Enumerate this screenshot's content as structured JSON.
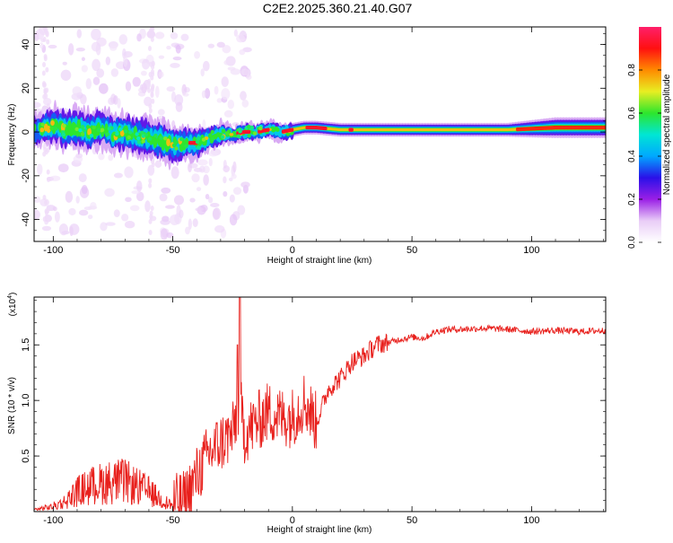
{
  "figure": {
    "title": "C2E2.2025.360.21.40.G07"
  },
  "chart_data": [
    {
      "type": "heatmap",
      "title": "C2E2.2025.360.21.40.G07",
      "xlabel": "Height of straight line (km)",
      "ylabel": "Frequency (Hz)",
      "xlim": [
        -108,
        131
      ],
      "ylim": [
        -50,
        48
      ],
      "x_ticks": [
        -100,
        -50,
        0,
        50,
        100
      ],
      "x_tick_labels": [
        "-100",
        "-50",
        "0",
        "50",
        "100"
      ],
      "y_ticks": [
        -40,
        -20,
        0,
        20,
        40
      ],
      "y_tick_labels": [
        "-40",
        "-20",
        "0",
        "20",
        "40"
      ],
      "colorbar": {
        "label": "Normalized spectral amplitude",
        "range": [
          0,
          1
        ],
        "ticks": [
          0.0,
          0.2,
          0.4,
          0.6,
          0.8
        ],
        "tick_labels": [
          "0.0",
          "0.2",
          "0.4",
          "0.6",
          "0.8"
        ],
        "colors": [
          "#ffffff",
          "#e9cdf7",
          "#9a1fe6",
          "#2a10e8",
          "#00a8ff",
          "#00e6d4",
          "#2de62d",
          "#e8ee22",
          "#ff8a00",
          "#ff1010",
          "#ff1f6a"
        ]
      },
      "ridge": {
        "x": [
          -106,
          -100,
          -95,
          -90,
          -85,
          -80,
          -75,
          -70,
          -65,
          -60,
          -55,
          -50,
          -45,
          -40,
          -35,
          -30,
          -25,
          -20,
          -15,
          -10,
          -5,
          0,
          5,
          10,
          20,
          30,
          50,
          70,
          90,
          110,
          131
        ],
        "freq": [
          1,
          3,
          1,
          2,
          0,
          2,
          -1,
          0,
          -2,
          -3,
          -4,
          -6,
          -5,
          -5,
          -3,
          -1,
          -1,
          0,
          0,
          1,
          0,
          1,
          2,
          2,
          1,
          1,
          1,
          1,
          1,
          2,
          2
        ],
        "half_width": [
          4,
          5,
          5,
          5,
          5,
          5,
          5,
          5,
          5,
          5,
          5,
          5,
          4,
          4,
          3,
          3,
          2,
          2,
          2,
          2,
          2,
          2,
          2,
          2,
          2,
          2,
          2,
          2,
          2,
          3,
          3
        ]
      }
    },
    {
      "type": "line",
      "xlabel": "Height of straight line (km)",
      "ylabel": "SNR (10 * v/v)",
      "y_multiplier_label": "(x10",
      "y_multiplier_exp": "4",
      "xlim": [
        -108,
        131
      ],
      "ylim": [
        0.0,
        1.93
      ],
      "x_ticks": [
        -100,
        -50,
        0,
        50,
        100
      ],
      "x_tick_labels": [
        "-100",
        "-50",
        "0",
        "50",
        "100"
      ],
      "y_ticks": [
        0.5,
        1.0,
        1.5
      ],
      "y_tick_labels": [
        "0.5",
        "1.0",
        "1.5"
      ],
      "line_color": "#e8201c",
      "series": [
        {
          "x": [
            -108,
            -100,
            -95,
            -90,
            -85,
            -80,
            -75,
            -70,
            -65,
            -60,
            -55,
            -50,
            -45,
            -40,
            -35,
            -30,
            -25,
            -22,
            -20,
            -15,
            -10,
            -5,
            0,
            5,
            10,
            15,
            20,
            25,
            30,
            35,
            40,
            45,
            50,
            55,
            60,
            65,
            70,
            80,
            90,
            100,
            110,
            120,
            131
          ],
          "y": [
            0.02,
            0.05,
            0.1,
            0.2,
            0.25,
            0.28,
            0.3,
            0.3,
            0.25,
            0.2,
            0.12,
            0.06,
            0.1,
            0.32,
            0.52,
            0.62,
            0.7,
            1.0,
            0.7,
            0.8,
            0.9,
            0.85,
            0.85,
            1.0,
            0.8,
            1.1,
            1.2,
            1.35,
            1.4,
            1.5,
            1.52,
            1.55,
            1.57,
            1.56,
            1.62,
            1.64,
            1.64,
            1.65,
            1.64,
            1.62,
            1.63,
            1.62,
            1.63
          ]
        }
      ]
    }
  ]
}
